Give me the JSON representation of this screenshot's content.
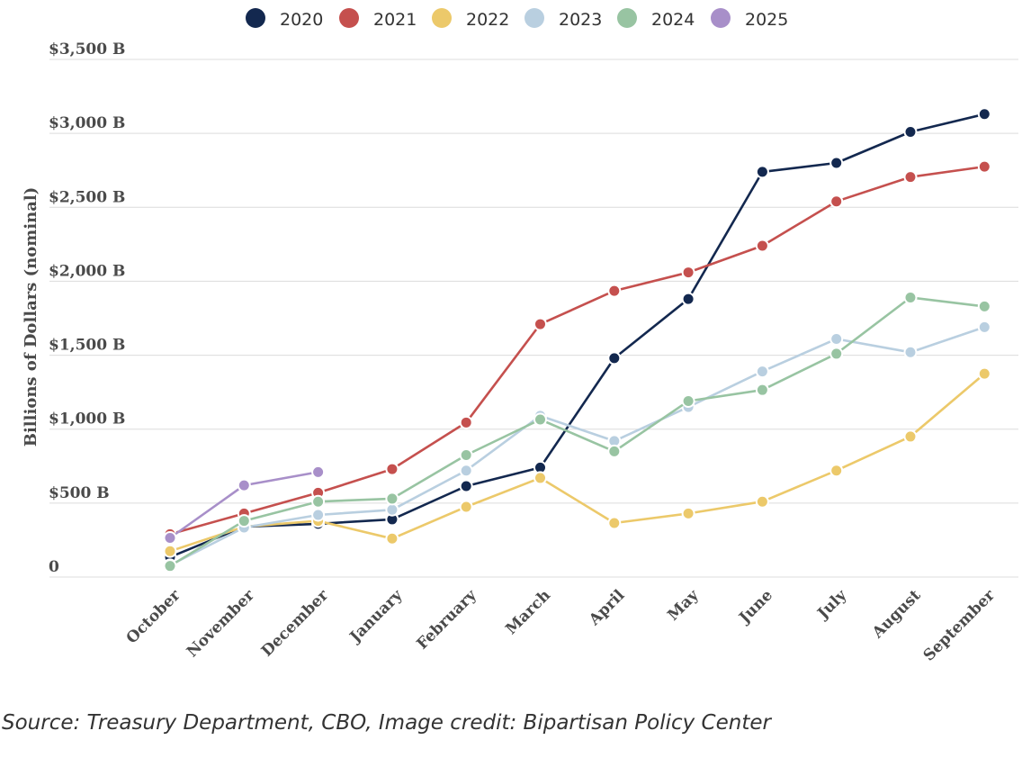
{
  "chart_data": {
    "type": "line",
    "title": "",
    "xlabel": "",
    "ylabel": "Billions of Dollars (nominal)",
    "ylim": [
      0,
      3500
    ],
    "yticks": [
      {
        "value": 0,
        "label": "0"
      },
      {
        "value": 500,
        "label": "$500 B"
      },
      {
        "value": 1000,
        "label": "$1,000 B"
      },
      {
        "value": 1500,
        "label": "$1,500 B"
      },
      {
        "value": 2000,
        "label": "$2,000 B"
      },
      {
        "value": 2500,
        "label": "$2,500 B"
      },
      {
        "value": 3000,
        "label": "$3,000 B"
      },
      {
        "value": 3500,
        "label": "$3,500 B"
      }
    ],
    "grid": true,
    "legend_position": "top-center",
    "categories": [
      "October",
      "November",
      "December",
      "January",
      "February",
      "March",
      "April",
      "May",
      "June",
      "July",
      "August",
      "September"
    ],
    "series": [
      {
        "name": "2020",
        "color": "#13284f",
        "values": [
          135,
          340,
          360,
          390,
          615,
          740,
          1480,
          1880,
          2740,
          2800,
          3010,
          3130
        ]
      },
      {
        "name": "2021",
        "color": "#c5504e",
        "values": [
          290,
          430,
          570,
          730,
          1045,
          1710,
          1935,
          2060,
          2240,
          2540,
          2705,
          2775
        ]
      },
      {
        "name": "2022",
        "color": "#ecc96a",
        "values": [
          175,
          340,
          380,
          260,
          475,
          670,
          365,
          430,
          510,
          720,
          950,
          1375
        ]
      },
      {
        "name": "2023",
        "color": "#b9cfe0",
        "values": [
          80,
          335,
          420,
          455,
          720,
          1090,
          920,
          1150,
          1390,
          1610,
          1520,
          1690
        ]
      },
      {
        "name": "2024",
        "color": "#98c4a2",
        "values": [
          75,
          380,
          510,
          530,
          825,
          1065,
          850,
          1190,
          1265,
          1510,
          1890,
          1830
        ]
      },
      {
        "name": "2025",
        "color": "#a88fc9",
        "values": [
          265,
          620,
          710,
          null,
          null,
          null,
          null,
          null,
          null,
          null,
          null,
          null
        ]
      }
    ]
  },
  "source_text": "Source: Treasury Department, CBO, Image credit: Bipartisan Policy Center"
}
